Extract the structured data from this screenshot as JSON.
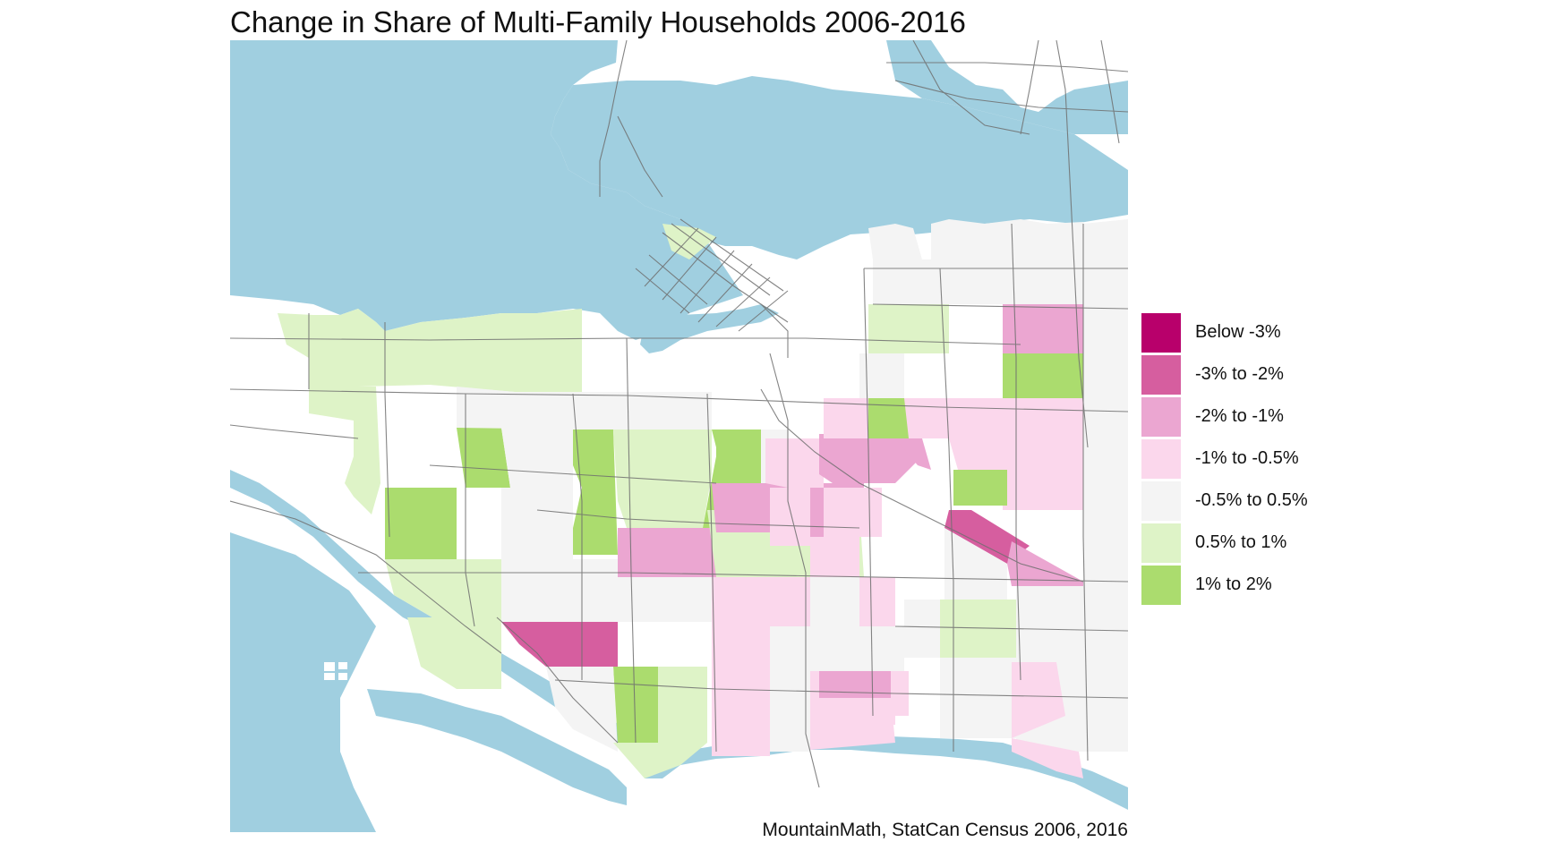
{
  "title": "Change in Share of Multi-Family Households 2006-2016",
  "caption": "MountainMath, StatCan Census 2006, 2016",
  "legend": {
    "items": [
      {
        "label": "Below -3%",
        "color": "#b8006b"
      },
      {
        "label": "-3% to -2%",
        "color": "#d65e9f"
      },
      {
        "label": "-2% to -1%",
        "color": "#eba6d1"
      },
      {
        "label": "-1% to -0.5%",
        "color": "#fbd7ec"
      },
      {
        "label": "-0.5% to 0.5%",
        "color": "#f4f4f4"
      },
      {
        "label": "0.5% to 1%",
        "color": "#def3c7"
      },
      {
        "label": "1% to 2%",
        "color": "#abdc6e"
      }
    ]
  },
  "colors": {
    "water": "#a0cfe0",
    "road": "#6f6f6f",
    "background": "#ffffff"
  }
}
